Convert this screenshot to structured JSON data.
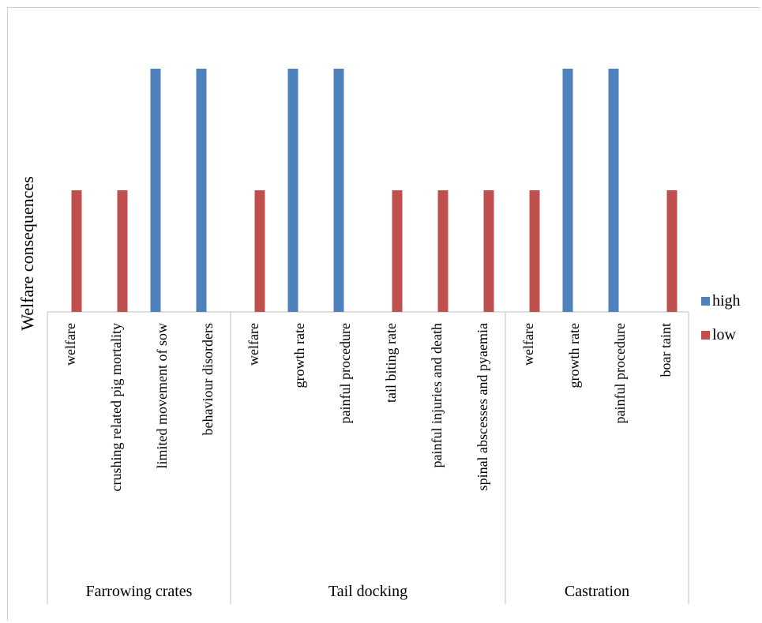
{
  "chart_data": {
    "type": "bar",
    "ylabel": "Welfare consequences",
    "groups": [
      {
        "name": "Farrowing crates",
        "categories": [
          "welfare",
          "crushing related pig mortality",
          "limited movement of sow",
          "behaviour disorders"
        ]
      },
      {
        "name": "Tail docking",
        "categories": [
          "welfare",
          "growth rate",
          "painful procedure",
          "tail biting rate",
          "painful injuries and death",
          "spinal abscesses  and pyaemia"
        ]
      },
      {
        "name": "Castration",
        "categories": [
          "welfare",
          "growth rate",
          "painful procedure",
          "boar taint"
        ]
      }
    ],
    "series": [
      {
        "name": "high",
        "color": "#4f81bd",
        "values": [
          0,
          0,
          2,
          2,
          0,
          2,
          2,
          0,
          0,
          0,
          0,
          2,
          2,
          0
        ]
      },
      {
        "name": "low",
        "color": "#c0504d",
        "values": [
          1,
          1,
          0,
          0,
          1,
          0,
          0,
          1,
          1,
          1,
          1,
          0,
          0,
          1
        ]
      }
    ],
    "ylim": [
      0,
      2
    ],
    "grid": false,
    "legend_position": "right"
  }
}
